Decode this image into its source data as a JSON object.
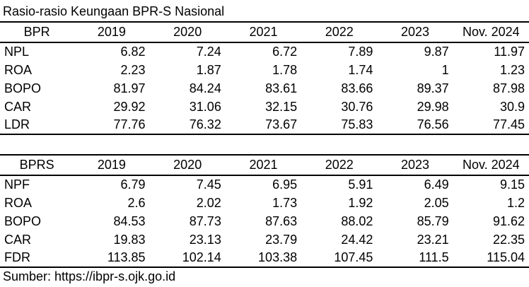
{
  "title": "Rasio-rasio Keungaan BPR-S Nasional",
  "source": "Sumber: https://ibpr-s.ojk.go.id",
  "tables": [
    {
      "header": [
        "BPR",
        "2019",
        "2020",
        "2021",
        "2022",
        "2023",
        "Nov. 2024"
      ],
      "rows": [
        [
          "NPL",
          "6.82",
          "7.24",
          "6.72",
          "7.89",
          "9.87",
          "11.97"
        ],
        [
          "ROA",
          "2.23",
          "1.87",
          "1.78",
          "1.74",
          "1",
          "1.23"
        ],
        [
          "BOPO",
          "81.97",
          "84.24",
          "83.61",
          "83.66",
          "89.37",
          "87.98"
        ],
        [
          "CAR",
          "29.92",
          "31.06",
          "32.15",
          "30.76",
          "29.98",
          "30.9"
        ],
        [
          "LDR",
          "77.76",
          "76.32",
          "73.67",
          "75.83",
          "76.56",
          "77.45"
        ]
      ]
    },
    {
      "header": [
        "BPRS",
        "2019",
        "2020",
        "2021",
        "2022",
        "2023",
        "Nov. 2024"
      ],
      "rows": [
        [
          "NPF",
          "6.79",
          "7.45",
          "6.95",
          "5.91",
          "6.49",
          "9.15"
        ],
        [
          "ROA",
          "2.6",
          "2.02",
          "1.73",
          "1.92",
          "2.05",
          "1.2"
        ],
        [
          "BOPO",
          "84.53",
          "87.73",
          "87.63",
          "88.02",
          "85.79",
          "91.62"
        ],
        [
          "CAR",
          "19.83",
          "23.13",
          "23.79",
          "24.42",
          "23.21",
          "22.35"
        ],
        [
          "FDR",
          "113.85",
          "102.14",
          "103.38",
          "107.45",
          "111.5",
          "115.04"
        ]
      ]
    }
  ]
}
